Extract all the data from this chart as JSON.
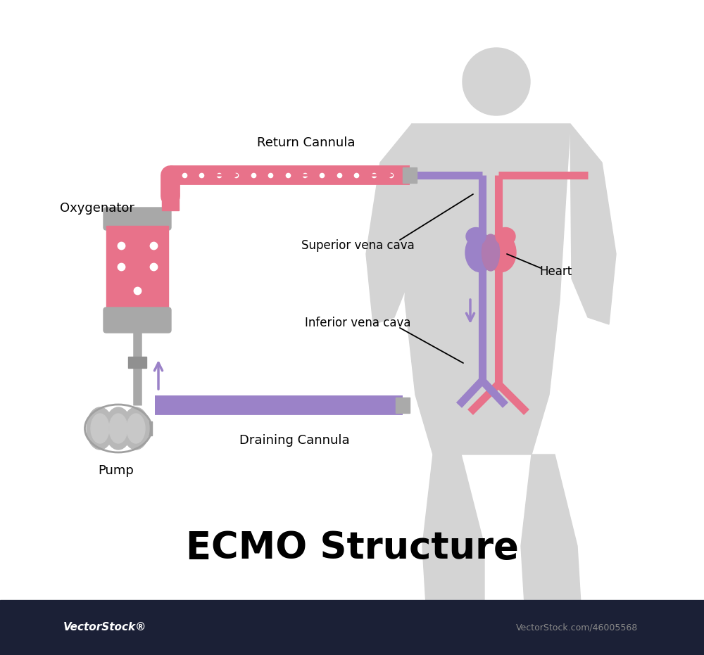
{
  "title": "ECMO Structure",
  "title_fontsize": 38,
  "title_fontweight": "bold",
  "bg_color": "#ffffff",
  "figure_color": "#d4d4d4",
  "pink_color": "#e8728a",
  "purple_color": "#9b82c8",
  "gray_color": "#b5b5b5",
  "gray_dark": "#999999",
  "footer_bg": "#1b2036",
  "footer_text_color": "#ffffff",
  "labels": {
    "return_cannula": "Return Cannula",
    "oxygenator": "Oxygenator",
    "superior_vena_cava": "Superior vena cava",
    "heart": "Heart",
    "inferior_vena_cava": "Inferior vena cava",
    "draining_cannula": "Draining Cannula",
    "pump": "Pump"
  }
}
